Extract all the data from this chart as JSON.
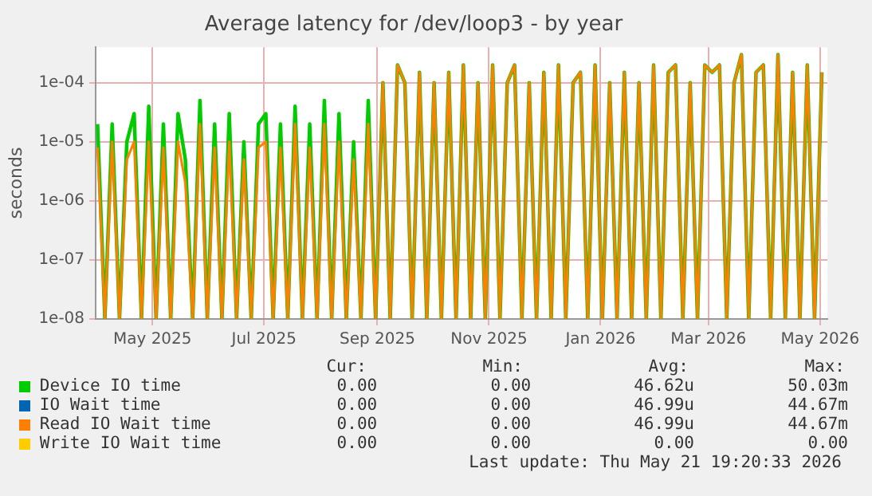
{
  "chart_data": {
    "type": "line",
    "title": "Average latency for /dev/loop3 - by year",
    "ylabel": "seconds",
    "x": [
      "2025-04-01",
      "2025-04-05",
      "2025-04-09",
      "2025-04-13",
      "2025-04-17",
      "2025-04-21",
      "2025-04-25",
      "2025-04-29",
      "2025-05-03",
      "2025-05-07",
      "2025-05-11",
      "2025-05-15",
      "2025-05-19",
      "2025-05-23",
      "2025-05-27",
      "2025-05-31",
      "2025-06-04",
      "2025-06-08",
      "2025-06-12",
      "2025-06-16",
      "2025-06-20",
      "2025-06-24",
      "2025-06-28",
      "2025-07-02",
      "2025-07-06",
      "2025-07-10",
      "2025-07-14",
      "2025-07-18",
      "2025-07-22",
      "2025-07-26",
      "2025-07-30",
      "2025-08-03",
      "2025-08-07",
      "2025-08-11",
      "2025-08-15",
      "2025-08-19",
      "2025-08-23",
      "2025-08-27",
      "2025-08-31",
      "2025-09-04",
      "2025-09-08",
      "2025-09-12",
      "2025-09-16",
      "2025-09-20",
      "2025-09-24",
      "2025-09-28",
      "2025-10-02",
      "2025-10-06",
      "2025-10-10",
      "2025-10-14",
      "2025-10-18",
      "2025-10-22",
      "2025-10-26",
      "2025-10-30",
      "2025-11-03",
      "2025-11-07",
      "2025-11-11",
      "2025-11-15",
      "2025-11-19",
      "2025-11-23",
      "2025-11-27",
      "2025-12-01",
      "2025-12-05",
      "2025-12-09",
      "2025-12-13",
      "2025-12-17",
      "2025-12-21",
      "2025-12-25",
      "2025-12-29",
      "2026-01-02",
      "2026-01-06",
      "2026-01-10",
      "2026-01-14",
      "2026-01-18",
      "2026-01-22",
      "2026-01-26",
      "2026-01-30",
      "2026-02-03",
      "2026-02-07",
      "2026-02-11",
      "2026-02-15",
      "2026-02-19",
      "2026-02-23",
      "2026-02-27",
      "2026-03-03",
      "2026-03-07",
      "2026-03-11",
      "2026-03-15",
      "2026-03-19",
      "2026-03-23",
      "2026-03-27",
      "2026-03-31",
      "2026-04-04",
      "2026-04-08",
      "2026-04-12",
      "2026-04-16",
      "2026-04-20",
      "2026-04-24",
      "2026-04-28",
      "2026-05-02"
    ],
    "series": [
      {
        "name": "Device IO time",
        "color": "#00cc00",
        "values": [
          2e-05,
          1e-08,
          2e-05,
          1e-08,
          1e-05,
          3e-05,
          1e-08,
          4e-05,
          1e-08,
          2e-05,
          1e-08,
          3e-05,
          5e-06,
          1e-08,
          5e-05,
          1e-08,
          2e-05,
          1e-08,
          3e-05,
          1e-08,
          1e-05,
          1e-08,
          2e-05,
          3e-05,
          1e-08,
          2e-05,
          1e-08,
          4e-05,
          1e-08,
          2e-05,
          1e-08,
          5e-05,
          1e-08,
          3e-05,
          1e-08,
          1e-05,
          1e-08,
          5e-05,
          1e-08,
          0.0001,
          1e-08,
          0.0002,
          0.0001,
          1e-08,
          0.00015,
          1e-08,
          0.0001,
          1e-08,
          0.00015,
          1e-08,
          0.0002,
          1e-08,
          0.0001,
          1e-08,
          0.0002,
          1e-08,
          0.0001,
          0.0002,
          1e-08,
          0.0001,
          1e-08,
          0.00015,
          1e-08,
          0.0002,
          1e-08,
          0.0001,
          0.00015,
          1e-08,
          0.0002,
          1e-08,
          0.0001,
          1e-08,
          0.00015,
          1e-08,
          0.0001,
          1e-08,
          0.0002,
          1e-08,
          0.00015,
          0.0002,
          1e-08,
          0.0001,
          1e-08,
          0.0002,
          0.00015,
          0.0002,
          1e-08,
          0.0001,
          0.0003,
          1e-08,
          0.00015,
          0.0002,
          1e-08,
          0.0003,
          1e-08,
          0.00015,
          1e-08,
          0.0002,
          1e-08,
          0.00015
        ]
      },
      {
        "name": "IO Wait time",
        "color": "#0066b3",
        "values": [
          null,
          null,
          null,
          null,
          null,
          null,
          null,
          null,
          null,
          null,
          null,
          null,
          null,
          null,
          null,
          null,
          null,
          null,
          null,
          null,
          null,
          null,
          null,
          null,
          null,
          null,
          null,
          null,
          null,
          null,
          null,
          null,
          null,
          null,
          null,
          null,
          null,
          null,
          null,
          null,
          null,
          null,
          null,
          null,
          null,
          null,
          null,
          null,
          null,
          null,
          null,
          null,
          null,
          null,
          null,
          null,
          null,
          null,
          null,
          null,
          null,
          null,
          null,
          null,
          null,
          null,
          null,
          null,
          null,
          null,
          null,
          null,
          null,
          null,
          null,
          null,
          null,
          null,
          null,
          null,
          null,
          null,
          null,
          null,
          null,
          null,
          null,
          null,
          null,
          null,
          null,
          null,
          null,
          null,
          null,
          null,
          null,
          null,
          null,
          null
        ]
      },
      {
        "name": "Read IO Wait time",
        "color": "#ff8000",
        "values": [
          8e-06,
          1e-08,
          1e-05,
          1e-08,
          5e-06,
          1e-05,
          1e-08,
          1e-05,
          1e-08,
          8e-06,
          1e-08,
          1e-05,
          2e-06,
          1e-08,
          2e-05,
          1e-08,
          8e-06,
          1e-08,
          1e-05,
          1e-08,
          5e-06,
          1e-08,
          8e-06,
          1e-05,
          1e-08,
          8e-06,
          1e-08,
          2e-05,
          1e-08,
          8e-06,
          1e-08,
          2e-05,
          1e-08,
          1e-05,
          1e-08,
          5e-06,
          1e-08,
          2e-05,
          1e-08,
          0.0001,
          1e-08,
          0.0002,
          0.0001,
          1e-08,
          0.00015,
          1e-08,
          0.0001,
          1e-08,
          0.00015,
          1e-08,
          0.0002,
          1e-08,
          0.0001,
          1e-08,
          0.0002,
          1e-08,
          0.0001,
          0.0002,
          1e-08,
          0.0001,
          1e-08,
          0.00015,
          1e-08,
          0.0002,
          1e-08,
          0.0001,
          0.00015,
          1e-08,
          0.0002,
          1e-08,
          0.0001,
          1e-08,
          0.00015,
          1e-08,
          0.0001,
          1e-08,
          0.0002,
          1e-08,
          0.00015,
          0.0002,
          1e-08,
          0.0001,
          1e-08,
          0.0002,
          0.00015,
          0.0002,
          1e-08,
          0.0001,
          0.0003,
          1e-08,
          0.00015,
          0.0002,
          1e-08,
          0.0003,
          1e-08,
          0.00015,
          1e-08,
          0.0002,
          1e-08,
          0.00015
        ]
      },
      {
        "name": "Write IO Wait time",
        "color": "#ffcc00",
        "values": [
          null,
          null,
          null,
          null,
          null,
          null,
          null,
          null,
          null,
          null,
          null,
          null,
          null,
          null,
          null,
          null,
          null,
          null,
          null,
          null,
          null,
          null,
          null,
          null,
          null,
          null,
          null,
          null,
          null,
          null,
          null,
          null,
          null,
          null,
          null,
          null,
          null,
          null,
          null,
          null,
          null,
          null,
          null,
          null,
          null,
          null,
          null,
          null,
          null,
          null,
          null,
          null,
          null,
          null,
          null,
          null,
          null,
          null,
          null,
          null,
          null,
          null,
          null,
          null,
          null,
          null,
          null,
          null,
          null,
          null,
          null,
          null,
          null,
          null,
          null,
          null,
          null,
          null,
          null,
          null,
          null,
          null,
          null,
          null,
          null,
          null,
          null,
          null,
          null,
          null,
          null,
          null,
          null,
          null,
          null,
          null,
          null,
          null,
          null,
          null
        ]
      }
    ],
    "xlim": [
      "2025-03-31",
      "2026-05-05"
    ],
    "xticks": [
      {
        "value": "2025-05-01",
        "label": "May 2025"
      },
      {
        "value": "2025-07-01",
        "label": "Jul 2025"
      },
      {
        "value": "2025-09-01",
        "label": "Sep 2025"
      },
      {
        "value": "2025-11-01",
        "label": "Nov 2025"
      },
      {
        "value": "2026-01-01",
        "label": "Jan 2026"
      },
      {
        "value": "2026-03-01",
        "label": "Mar 2026"
      },
      {
        "value": "2026-05-01",
        "label": "May 2026"
      }
    ],
    "ylim": [
      1e-08,
      0.0004
    ],
    "yticks": [
      {
        "value": 1e-08,
        "label": "1e-08"
      },
      {
        "value": 1e-07,
        "label": "1e-07"
      },
      {
        "value": 1e-06,
        "label": "1e-06"
      },
      {
        "value": 1e-05,
        "label": "1e-05"
      },
      {
        "value": 0.0001,
        "label": "1e-04"
      }
    ],
    "log": true,
    "grid": true,
    "legend": "bottom",
    "marker": "none",
    "line_style": "solid",
    "annotations": [
      "Cur:",
      "Min:",
      "Avg:",
      "Max:",
      "0.00",
      "0.00",
      "46.62u",
      "50.03m",
      "0.00",
      "0.00",
      "46.99u",
      "44.67m",
      "0.00",
      "0.00",
      "46.99u",
      "44.67m",
      "0.00",
      "0.00",
      "0.00",
      "0.00",
      "Last update: Thu May 21 19:20:33 2026"
    ]
  }
}
